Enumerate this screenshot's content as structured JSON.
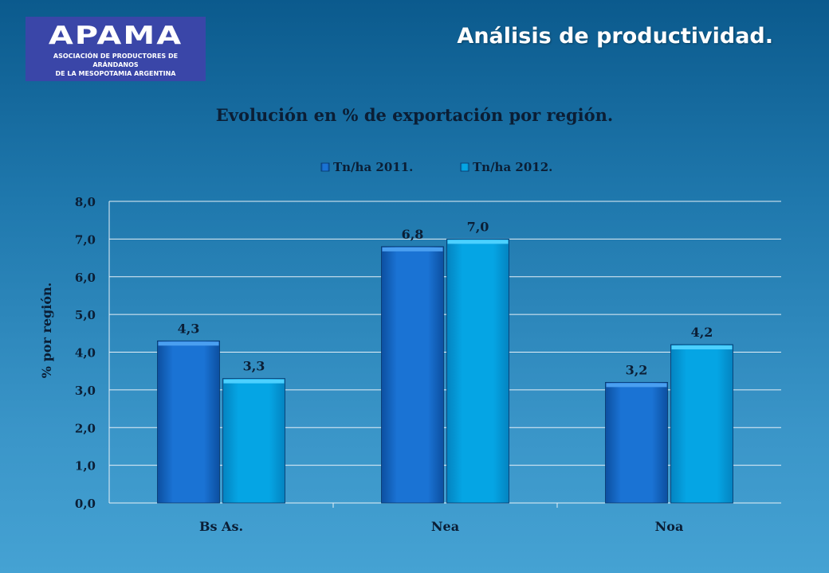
{
  "header": {
    "logo_text": "APAMA",
    "logo_subtext_line1": "ASOCIACIÓN DE PRODUCTORES DE ARÁNDANOS",
    "logo_subtext_line2": "DE LA MESOPOTAMIA ARGENTINA",
    "title": "Análisis de productividad."
  },
  "colors": {
    "series_2011": "#1a73d4",
    "series_2012": "#05a5e4",
    "text": "#0b1e35",
    "grid": "#e6f0f7"
  },
  "chart_data": {
    "type": "bar",
    "title": "Evolución en % de exportación por región.",
    "ylabel": "% por región.",
    "xlabel": "",
    "categories": [
      "Bs As.",
      "Nea",
      "Noa"
    ],
    "series": [
      {
        "name": "Tn/ha 2011.",
        "values": [
          4.3,
          6.8,
          3.2
        ],
        "labels": [
          "4,3",
          "6,8",
          "3,2"
        ]
      },
      {
        "name": "Tn/ha 2012.",
        "values": [
          3.3,
          7.0,
          4.2
        ],
        "labels": [
          "3,3",
          "7,0",
          "4,2"
        ]
      }
    ],
    "ylim": [
      0,
      8
    ],
    "yticks": [
      "0,0",
      "1,0",
      "2,0",
      "3,0",
      "4,0",
      "5,0",
      "6,0",
      "7,0",
      "8,0"
    ],
    "grid": true,
    "legend": "top-center"
  }
}
